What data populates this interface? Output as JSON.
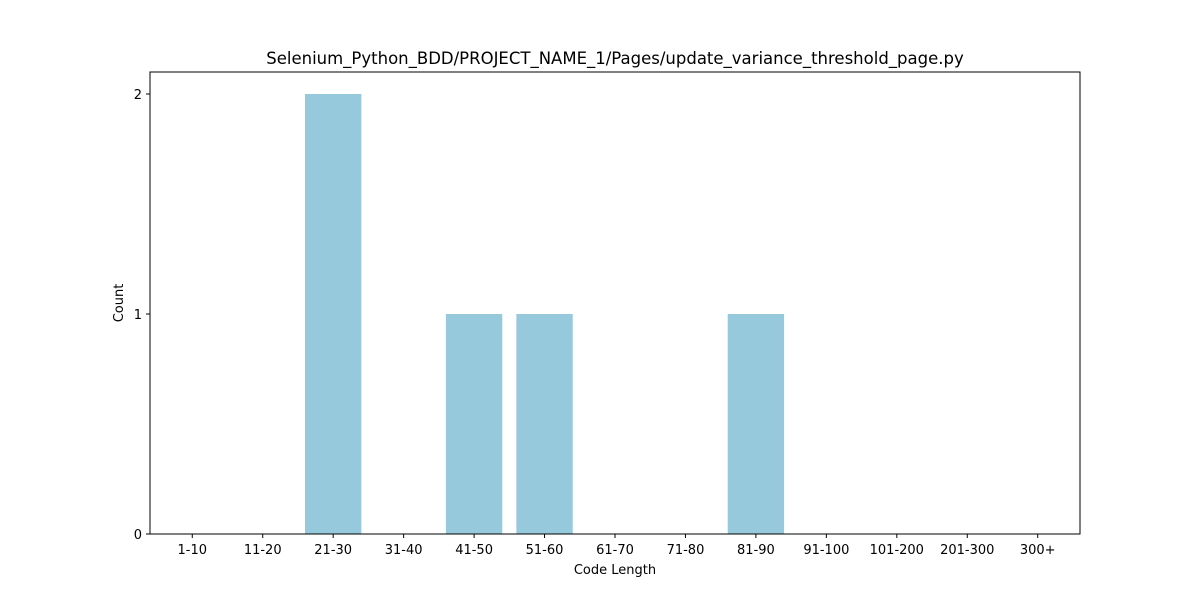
{
  "chart_data": {
    "type": "bar",
    "title": "Selenium_Python_BDD/PROJECT_NAME_1/Pages/update_variance_threshold_page.py",
    "xlabel": "Code Length",
    "ylabel": "Count",
    "categories": [
      "1-10",
      "11-20",
      "21-30",
      "31-40",
      "41-50",
      "51-60",
      "61-70",
      "71-80",
      "81-90",
      "91-100",
      "101-200",
      "201-300",
      "300+"
    ],
    "values": [
      0,
      0,
      2,
      0,
      1,
      1,
      0,
      0,
      1,
      0,
      0,
      0,
      0
    ],
    "ylim": [
      0,
      2.1
    ],
    "yticks": [
      0,
      1,
      2
    ],
    "grid": false,
    "legend": "none",
    "bar_color": "#96c9dc"
  }
}
